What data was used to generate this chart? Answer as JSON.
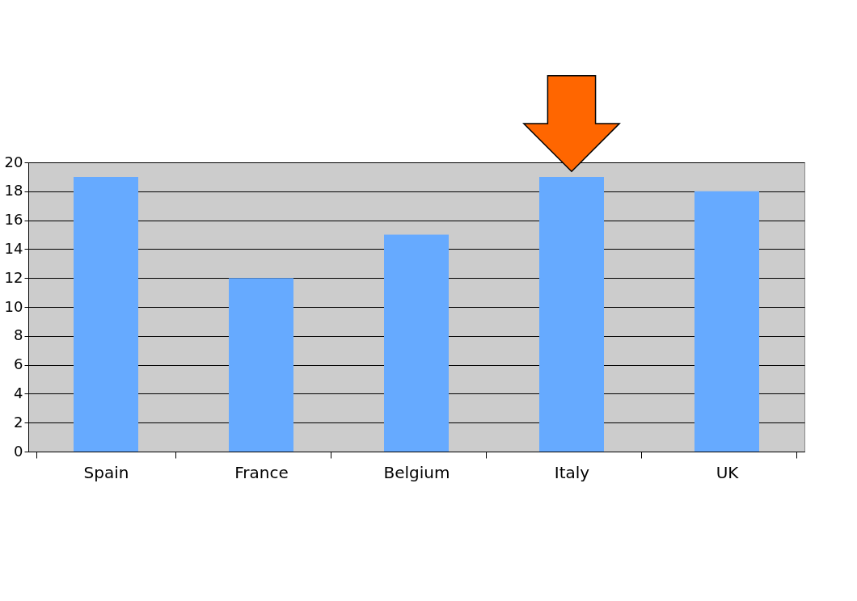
{
  "chart_data": {
    "type": "bar",
    "categories": [
      "Spain",
      "France",
      "Belgium",
      "Italy",
      "UK"
    ],
    "values": [
      19,
      12,
      15,
      19,
      18
    ],
    "color": "#66aaff",
    "ylim": [
      0,
      20
    ],
    "yticks": [
      0,
      2,
      4,
      6,
      8,
      10,
      12,
      14,
      16,
      18,
      20
    ],
    "grid": "y"
  }
}
